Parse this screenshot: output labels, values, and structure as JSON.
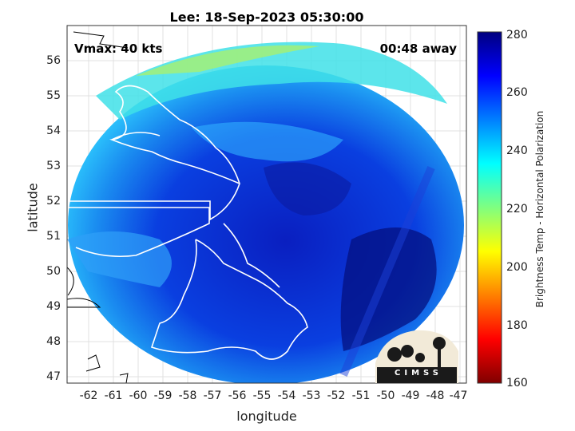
{
  "title": "Lee: 18-Sep-2023 05:30:00",
  "xlabel": "longitude",
  "ylabel": "latitude",
  "vmax_text": "Vmax: 40 kts",
  "away_text": "00:48 away",
  "x_ticks": [
    "-62",
    "-61",
    "-60",
    "-59",
    "-58",
    "-57",
    "-56",
    "-55",
    "-54",
    "-53",
    "-52",
    "-51",
    "-50",
    "-49",
    "-48",
    "-47"
  ],
  "y_ticks": [
    "56",
    "55",
    "54",
    "53",
    "52",
    "51",
    "50",
    "49",
    "48",
    "47"
  ],
  "colorbar": {
    "label": "Brightness Temp - Horizontal Polarization",
    "ticks": [
      "280",
      "260",
      "240",
      "220",
      "200",
      "180",
      "160"
    ],
    "colors": [
      "#000080",
      "#0000ff",
      "#00c8ff",
      "#ffff00",
      "#ff4000",
      "#800000"
    ]
  },
  "logo_text": "CIMSS",
  "map": {
    "lon_range": [
      -62.8,
      -46.8
    ],
    "lat_range": [
      46.8,
      56.8
    ]
  }
}
